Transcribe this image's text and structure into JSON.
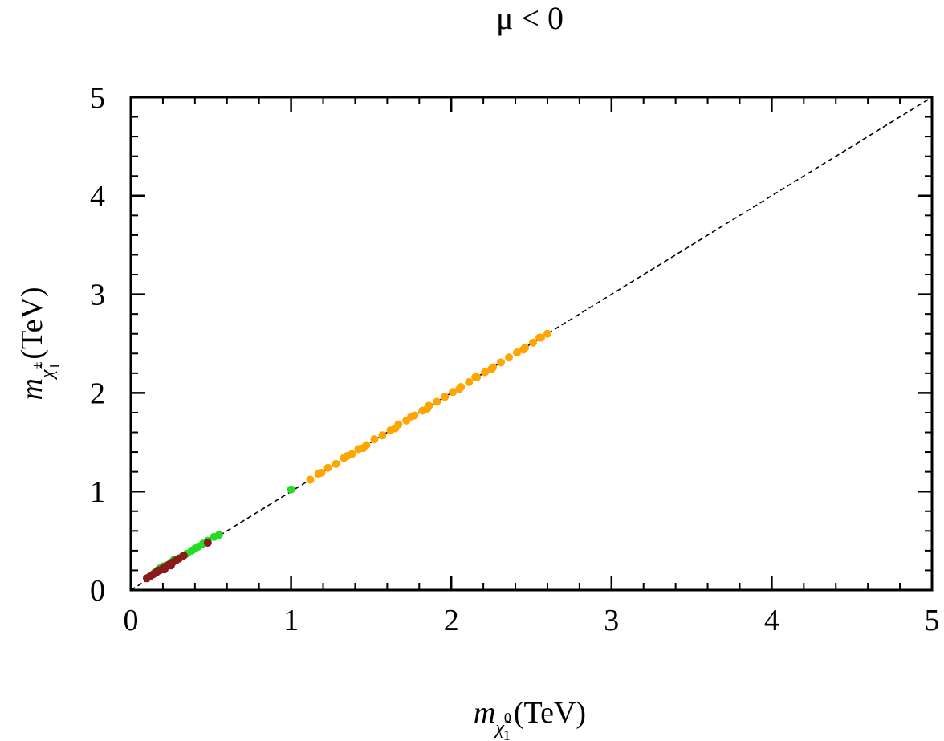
{
  "chart_data": {
    "type": "scatter",
    "title": "μ < 0",
    "xlabel": {
      "symbol": "m",
      "subscript_base": "χ̃",
      "subscript_index": "1",
      "subscript_sup": "0",
      "unit": "(TeV)"
    },
    "ylabel": {
      "symbol": "m",
      "subscript_base": "χ̃",
      "subscript_index": "1",
      "subscript_sup": "±",
      "unit": "(TeV)"
    },
    "xlim": [
      0,
      5
    ],
    "ylim": [
      0,
      5
    ],
    "xticks": [
      "0",
      "1",
      "2",
      "3",
      "4",
      "5"
    ],
    "yticks": [
      "0",
      "1",
      "2",
      "3",
      "4",
      "5"
    ],
    "grid": false,
    "reference_line": {
      "style": "dashed",
      "color": "#000000",
      "x": [
        0,
        5
      ],
      "y": [
        0,
        5
      ]
    },
    "series": [
      {
        "color": "#ffa500",
        "points": [
          [
            1.12,
            1.12
          ],
          [
            1.17,
            1.18
          ],
          [
            1.19,
            1.19
          ],
          [
            1.23,
            1.24
          ],
          [
            1.28,
            1.28
          ],
          [
            1.33,
            1.34
          ],
          [
            1.38,
            1.38
          ],
          [
            1.42,
            1.43
          ],
          [
            1.47,
            1.47
          ],
          [
            1.52,
            1.53
          ],
          [
            1.57,
            1.57
          ],
          [
            1.62,
            1.62
          ],
          [
            1.67,
            1.68
          ],
          [
            1.72,
            1.72
          ],
          [
            1.77,
            1.77
          ],
          [
            1.82,
            1.82
          ],
          [
            1.86,
            1.87
          ],
          [
            1.91,
            1.91
          ],
          [
            1.96,
            1.96
          ],
          [
            2.01,
            2.01
          ],
          [
            2.06,
            2.06
          ],
          [
            2.11,
            2.11
          ],
          [
            2.16,
            2.16
          ],
          [
            2.21,
            2.21
          ],
          [
            2.26,
            2.26
          ],
          [
            2.31,
            2.31
          ],
          [
            2.36,
            2.36
          ],
          [
            2.41,
            2.41
          ],
          [
            2.46,
            2.46
          ],
          [
            2.51,
            2.51
          ],
          [
            2.56,
            2.56
          ],
          [
            2.6,
            2.6
          ],
          [
            1.45,
            1.44
          ],
          [
            1.65,
            1.64
          ],
          [
            1.85,
            1.84
          ],
          [
            2.05,
            2.04
          ],
          [
            2.25,
            2.24
          ],
          [
            2.45,
            2.44
          ],
          [
            1.35,
            1.36
          ],
          [
            1.75,
            1.76
          ],
          [
            2.15,
            2.16
          ],
          [
            2.55,
            2.56
          ]
        ]
      },
      {
        "color": "#22dd22",
        "points": [
          [
            1.0,
            1.02
          ],
          [
            0.55,
            0.56
          ],
          [
            0.52,
            0.54
          ],
          [
            0.48,
            0.5
          ],
          [
            0.45,
            0.47
          ],
          [
            0.42,
            0.44
          ],
          [
            0.4,
            0.42
          ],
          [
            0.38,
            0.4
          ],
          [
            0.35,
            0.37
          ],
          [
            0.32,
            0.34
          ],
          [
            0.3,
            0.32
          ],
          [
            0.28,
            0.3
          ],
          [
            0.25,
            0.28
          ],
          [
            0.22,
            0.25
          ],
          [
            0.2,
            0.24
          ],
          [
            0.27,
            0.31
          ],
          [
            0.18,
            0.22
          ],
          [
            0.15,
            0.18
          ]
        ]
      },
      {
        "color": "#8b1a1a",
        "points": [
          [
            0.1,
            0.12
          ],
          [
            0.12,
            0.14
          ],
          [
            0.14,
            0.16
          ],
          [
            0.16,
            0.18
          ],
          [
            0.18,
            0.2
          ],
          [
            0.2,
            0.22
          ],
          [
            0.22,
            0.24
          ],
          [
            0.24,
            0.26
          ],
          [
            0.26,
            0.28
          ],
          [
            0.28,
            0.3
          ],
          [
            0.3,
            0.32
          ],
          [
            0.33,
            0.35
          ],
          [
            0.48,
            0.48
          ],
          [
            0.21,
            0.21
          ],
          [
            0.25,
            0.25
          ],
          [
            0.17,
            0.2
          ]
        ]
      }
    ]
  }
}
